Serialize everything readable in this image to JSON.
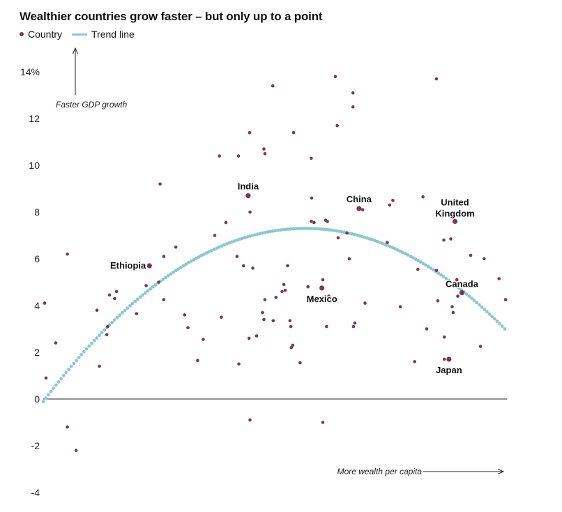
{
  "chart_data": {
    "type": "scatter",
    "title": "Wealthier countries grow faster – but only up to a point",
    "legend": {
      "country_label": "Country",
      "trend_label": "Trend line",
      "placement": "top-left"
    },
    "colors": {
      "points": "#7b3657",
      "trend": "#8ac8d0",
      "axis": "#222222"
    },
    "yticks": [
      {
        "value": 14,
        "label": "14%"
      },
      {
        "value": 12,
        "label": "12"
      },
      {
        "value": 10,
        "label": "10"
      },
      {
        "value": 8,
        "label": "8"
      },
      {
        "value": 6,
        "label": "6"
      },
      {
        "value": 4,
        "label": "4"
      },
      {
        "value": 2,
        "label": "2"
      },
      {
        "value": 0,
        "label": "0"
      },
      {
        "value": -2,
        "label": "-2"
      },
      {
        "value": -4,
        "label": "-4"
      }
    ],
    "ylim": [
      -4,
      14
    ],
    "xlim": [
      0,
      100
    ],
    "y_annotation": "Faster GDP growth",
    "x_annotation": "More wealth per capita",
    "trend_line": {
      "peak_x": 56.5,
      "peak_y": 7.3,
      "curvature": 0.00232
    },
    "labeled_points": [
      {
        "name": "India",
        "x": 44.2,
        "y": 8.7
      },
      {
        "name": "China",
        "x": 68.1,
        "y": 8.15
      },
      {
        "name": "United Kingdom",
        "x": 88.8,
        "y": 7.6
      },
      {
        "name": "Ethiopia",
        "x": 22.9,
        "y": 5.7
      },
      {
        "name": "Mexico",
        "x": 60.1,
        "y": 4.75
      },
      {
        "name": "Canada",
        "x": 90.3,
        "y": 4.55
      },
      {
        "name": "Japan",
        "x": 87.5,
        "y": 1.7
      }
    ],
    "points": [
      [
        0.3,
        4.1
      ],
      [
        0.6,
        0.9
      ],
      [
        2.7,
        2.4
      ],
      [
        5.2,
        6.2
      ],
      [
        5.2,
        -1.2
      ],
      [
        7.1,
        -2.2
      ],
      [
        11.6,
        3.8
      ],
      [
        12.1,
        1.4
      ],
      [
        13.7,
        2.75
      ],
      [
        13.9,
        3.1
      ],
      [
        14.3,
        4.45
      ],
      [
        15.4,
        4.3
      ],
      [
        15.8,
        4.6
      ],
      [
        20.1,
        3.65
      ],
      [
        22.2,
        4.85
      ],
      [
        24.9,
        5.0
      ],
      [
        25.2,
        9.2
      ],
      [
        26.0,
        6.1
      ],
      [
        26.0,
        4.25
      ],
      [
        28.6,
        6.5
      ],
      [
        30.5,
        3.6
      ],
      [
        31.2,
        3.05
      ],
      [
        33.3,
        1.65
      ],
      [
        34.5,
        2.55
      ],
      [
        37.0,
        7.0
      ],
      [
        38.0,
        10.4
      ],
      [
        38.4,
        3.5
      ],
      [
        39.4,
        7.55
      ],
      [
        41.8,
        6.1
      ],
      [
        42.1,
        10.4
      ],
      [
        42.2,
        1.5
      ],
      [
        43.2,
        5.7
      ],
      [
        44.4,
        2.6
      ],
      [
        44.5,
        11.4
      ],
      [
        44.6,
        8.0
      ],
      [
        44.6,
        -0.9
      ],
      [
        45.2,
        5.6
      ],
      [
        46.0,
        2.7
      ],
      [
        47.3,
        3.7
      ],
      [
        47.6,
        3.4
      ],
      [
        47.6,
        10.7
      ],
      [
        47.8,
        10.5
      ],
      [
        47.8,
        4.25
      ],
      [
        49.5,
        13.4
      ],
      [
        49.6,
        3.35
      ],
      [
        50.2,
        4.35
      ],
      [
        51.5,
        4.6
      ],
      [
        51.9,
        4.9
      ],
      [
        52.2,
        4.65
      ],
      [
        52.7,
        5.7
      ],
      [
        53.2,
        3.35
      ],
      [
        53.4,
        3.1
      ],
      [
        53.5,
        2.2
      ],
      [
        53.8,
        2.3
      ],
      [
        54.0,
        11.4
      ],
      [
        55.4,
        1.55
      ],
      [
        57.1,
        4.8
      ],
      [
        57.8,
        7.6
      ],
      [
        57.8,
        10.3
      ],
      [
        57.9,
        8.6
      ],
      [
        58.4,
        7.55
      ],
      [
        60.3,
        5.1
      ],
      [
        60.3,
        -1.0
      ],
      [
        60.9,
        7.65
      ],
      [
        61.1,
        3.1
      ],
      [
        61.3,
        7.6
      ],
      [
        61.6,
        4.4
      ],
      [
        63.0,
        13.8
      ],
      [
        63.4,
        11.7
      ],
      [
        63.6,
        6.9
      ],
      [
        65.5,
        7.1
      ],
      [
        66.0,
        6.0
      ],
      [
        66.8,
        13.1
      ],
      [
        66.8,
        12.5
      ],
      [
        66.9,
        3.1
      ],
      [
        67.2,
        3.25
      ],
      [
        68.9,
        8.1
      ],
      [
        69.4,
        4.1
      ],
      [
        74.2,
        6.7
      ],
      [
        74.7,
        8.3
      ],
      [
        75.4,
        8.5
      ],
      [
        77.0,
        3.95
      ],
      [
        80.1,
        1.6
      ],
      [
        80.8,
        5.55
      ],
      [
        81.9,
        8.65
      ],
      [
        82.7,
        3.0
      ],
      [
        84.8,
        5.5
      ],
      [
        84.8,
        13.7
      ],
      [
        85.1,
        4.2
      ],
      [
        86.4,
        6.8
      ],
      [
        86.5,
        2.65
      ],
      [
        86.5,
        1.7
      ],
      [
        87.9,
        6.85
      ],
      [
        88.2,
        3.95
      ],
      [
        88.4,
        3.7
      ],
      [
        89.2,
        5.1
      ],
      [
        89.4,
        4.4
      ],
      [
        92.2,
        6.15
      ],
      [
        94.3,
        2.25
      ],
      [
        95.1,
        6.0
      ],
      [
        98.3,
        5.15
      ],
      [
        99.7,
        4.25
      ]
    ]
  }
}
